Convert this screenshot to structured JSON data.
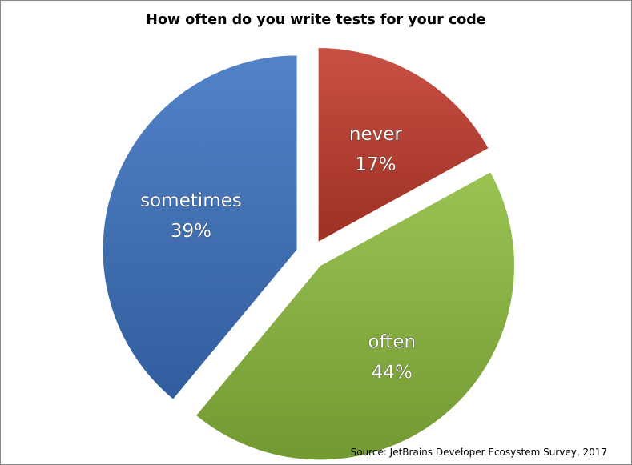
{
  "chart_data": {
    "type": "pie",
    "title": "How often do you write tests for your code",
    "source": "Source: JetBrains Developer Ecosystem Survey, 2017",
    "slices": [
      {
        "label": "never",
        "value": 17,
        "value_label": "17%",
        "color": "#c0392b",
        "exploded": true
      },
      {
        "label": "often",
        "value": 44,
        "value_label": "44%",
        "color": "#8cbb3c",
        "exploded": true
      },
      {
        "label": "sometimes",
        "value": 39,
        "value_label": "39%",
        "color": "#3a72bf",
        "exploded": true
      }
    ],
    "start_angle_deg": 0,
    "direction": "clockwise",
    "legend": "none"
  }
}
